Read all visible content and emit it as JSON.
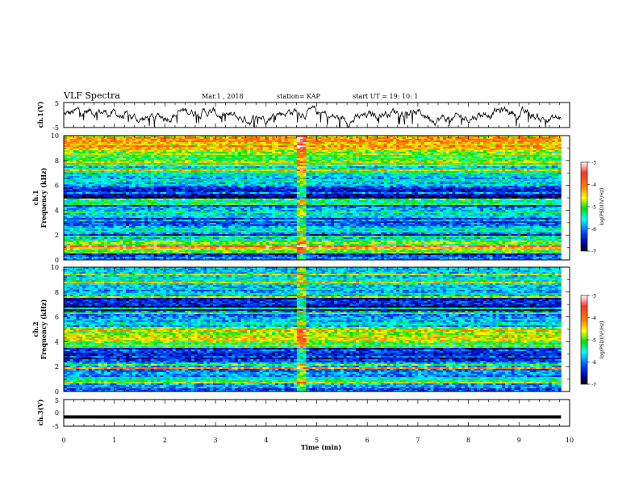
{
  "header": {
    "title": "VLF Spectra",
    "date": "Mar.1 , 2018",
    "station": "station= KAP",
    "start_ut": "start UT =   19: 10: 1"
  },
  "chart_data": [
    {
      "type": "line",
      "panel": "ch1-waveform",
      "ylabel": "ch.1(V)",
      "ylim": [
        -5,
        5
      ],
      "yticks": [
        "5",
        "-5"
      ],
      "xlim": [
        0,
        10
      ]
    },
    {
      "type": "heatmap",
      "panel": "ch1-spectrogram",
      "ylabel_line1": "ch.1",
      "ylabel_line2": "Frequency (kHz)",
      "ylim": [
        0,
        10
      ],
      "yticks": [
        "0",
        "2",
        "4",
        "6",
        "8",
        "10"
      ],
      "xlim": [
        0,
        10
      ],
      "data_extent_x": 9.83,
      "colorbar": {
        "label": "log(PSD)(V²/Hz)",
        "ticks": [
          "-3",
          "-4",
          "-5",
          "-6",
          "-7"
        ],
        "range": [
          -7,
          -3
        ]
      },
      "band_profile": [
        [
          0,
          0.2,
          -5.8
        ],
        [
          0.2,
          0.5,
          -6.3
        ],
        [
          0.5,
          0.8,
          -5.2
        ],
        [
          0.8,
          1.0,
          -4.6
        ],
        [
          1.0,
          1.2,
          -3.6
        ],
        [
          1.2,
          1.5,
          -5.0
        ],
        [
          1.5,
          2.0,
          -5.4
        ],
        [
          2.0,
          2.2,
          -6.2
        ],
        [
          2.2,
          2.6,
          -5.4
        ],
        [
          2.6,
          3.0,
          -5.9
        ],
        [
          3.0,
          3.4,
          -6.1
        ],
        [
          3.4,
          4.1,
          -5.5
        ],
        [
          4.1,
          4.4,
          -6.1
        ],
        [
          4.4,
          5.0,
          -5.2
        ],
        [
          5.0,
          5.3,
          -6.8
        ],
        [
          5.3,
          5.8,
          -6.3
        ],
        [
          5.8,
          6.2,
          -5.8
        ],
        [
          6.2,
          7.0,
          -5.6
        ],
        [
          7.0,
          7.8,
          -5.4
        ],
        [
          7.8,
          8.8,
          -4.9
        ],
        [
          8.8,
          10.0,
          -4.3
        ]
      ],
      "burst_time": 4.7
    },
    {
      "type": "heatmap",
      "panel": "ch2-spectrogram",
      "ylabel_line1": "ch.2",
      "ylabel_line2": "Frequency (kHz)",
      "ylim": [
        0,
        10
      ],
      "yticks": [
        "0",
        "2",
        "4",
        "6",
        "8",
        "10"
      ],
      "xlim": [
        0,
        10
      ],
      "data_extent_x": 9.83,
      "colorbar": {
        "label": "log(PSD)(V²/Hz)",
        "ticks": [
          "-3",
          "-4",
          "-5",
          "-6",
          "-7"
        ],
        "range": [
          -7,
          -3
        ]
      },
      "band_profile": [
        [
          0,
          0.3,
          -6.4
        ],
        [
          0.3,
          0.7,
          -5.8
        ],
        [
          0.7,
          1.2,
          -5.5
        ],
        [
          1.2,
          1.8,
          -5.9
        ],
        [
          1.8,
          2.0,
          -4.2
        ],
        [
          2.0,
          2.6,
          -6.0
        ],
        [
          2.6,
          3.5,
          -6.3
        ],
        [
          3.5,
          4.0,
          -5.2
        ],
        [
          4.0,
          4.4,
          -4.4
        ],
        [
          4.4,
          5.2,
          -5.0
        ],
        [
          5.2,
          6.0,
          -5.8
        ],
        [
          6.0,
          6.5,
          -6.2
        ],
        [
          6.5,
          7.5,
          -6.6
        ],
        [
          7.5,
          8.5,
          -5.7
        ],
        [
          8.5,
          10.0,
          -5.5
        ]
      ],
      "burst_time": 4.7
    },
    {
      "type": "line",
      "panel": "ch3-waveform",
      "ylabel": "ch.3(V)",
      "ylim": [
        -5,
        5
      ],
      "yticks": [
        "5",
        "0",
        "-5"
      ],
      "xlim": [
        0,
        10
      ],
      "constant_value": -1.5
    },
    {
      "type": "axis",
      "panel": "time-axis",
      "xlabel": "Time (min)",
      "xticks": [
        "0",
        "1",
        "2",
        "3",
        "4",
        "5",
        "6",
        "7",
        "8",
        "9",
        "10"
      ]
    }
  ]
}
